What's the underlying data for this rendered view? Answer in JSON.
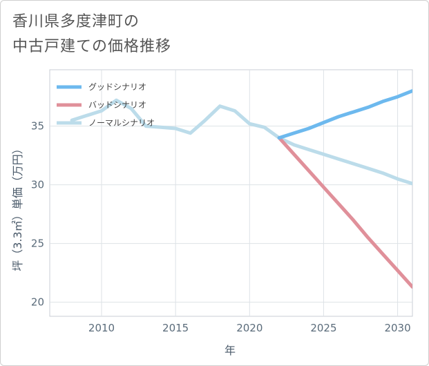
{
  "title_lines": [
    "香川県多度津町の",
    "中古戸建ての価格推移"
  ],
  "chart_data": {
    "type": "line",
    "xlabel": "年",
    "ylabel": "坪（3.3㎡）単価（万円）",
    "xlim": [
      2006.5,
      2031
    ],
    "ylim": [
      18.8,
      39.8
    ],
    "x_ticks": [
      2010,
      2015,
      2020,
      2025,
      2030
    ],
    "y_ticks": [
      20,
      25,
      30,
      35
    ],
    "legend_position": "top-left",
    "series": [
      {
        "name": "グッドシナリオ",
        "color": "#6db9ee",
        "x": [
          2022,
          2023,
          2024,
          2025,
          2026,
          2027,
          2028,
          2029,
          2030,
          2031
        ],
        "values": [
          34.0,
          34.4,
          34.8,
          35.3,
          35.8,
          36.2,
          36.6,
          37.1,
          37.5,
          38.0
        ]
      },
      {
        "name": "バッドシナリオ",
        "color": "#e0909a",
        "x": [
          2022,
          2023,
          2024,
          2025,
          2026,
          2027,
          2028,
          2029,
          2030,
          2031
        ],
        "values": [
          34.0,
          32.6,
          31.2,
          29.8,
          28.4,
          27.0,
          25.5,
          24.1,
          22.7,
          21.3
        ]
      },
      {
        "name": "ノーマルシナリオ",
        "color": "#bcdcea",
        "x": [
          2008,
          2009,
          2010,
          2011,
          2012,
          2013,
          2014,
          2015,
          2016,
          2017,
          2018,
          2019,
          2020,
          2021,
          2022,
          2023,
          2024,
          2025,
          2026,
          2027,
          2028,
          2029,
          2030,
          2031
        ],
        "values": [
          35.5,
          35.9,
          36.3,
          37.2,
          36.5,
          35.0,
          34.9,
          34.8,
          34.4,
          35.5,
          36.7,
          36.3,
          35.2,
          34.9,
          34.0,
          33.4,
          33.0,
          32.6,
          32.2,
          31.8,
          31.4,
          31.0,
          30.5,
          30.1
        ]
      }
    ]
  }
}
